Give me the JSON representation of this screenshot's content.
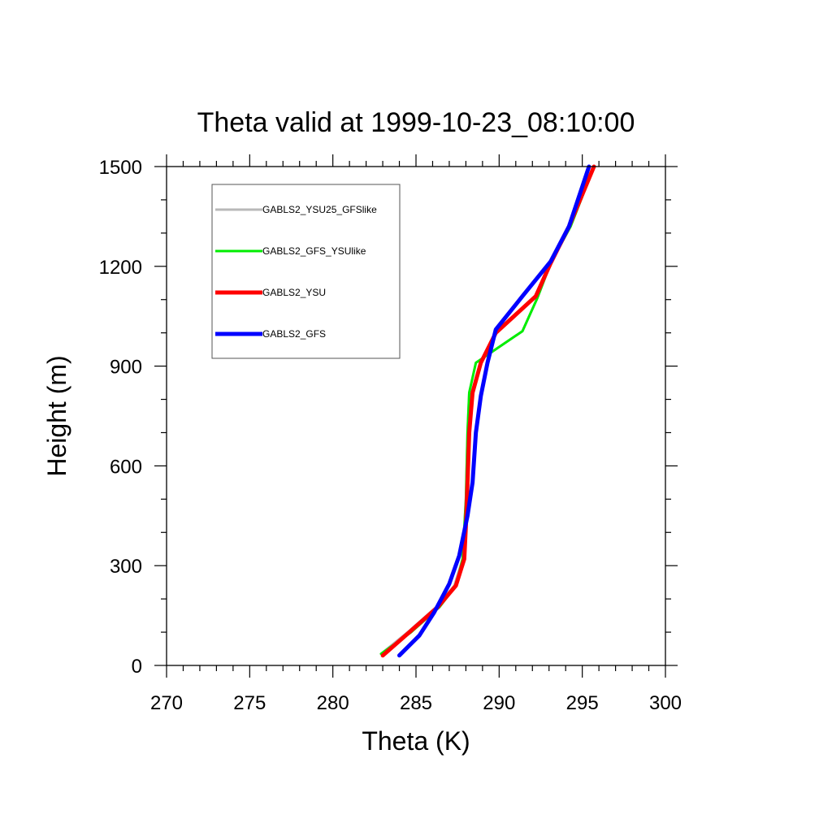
{
  "chart_data": {
    "type": "line",
    "title": "Theta valid at 1999-10-23_08:10:00",
    "xlabel": "Theta (K)",
    "ylabel": "Height (m)",
    "xlim": [
      270,
      300
    ],
    "ylim": [
      0,
      1500
    ],
    "xticks": [
      "270",
      "275",
      "280",
      "285",
      "290",
      "295",
      "300"
    ],
    "yticks": [
      "0",
      "300",
      "600",
      "900",
      "1200",
      "1500"
    ],
    "grid": false,
    "legend_position": "top-left",
    "series": [
      {
        "name": "GABLS2_YSU25_GFSlike",
        "color": "#b8b8b8",
        "width": 3,
        "points": [
          [
            282.9,
            35
          ],
          [
            284.5,
            100
          ],
          [
            286.2,
            175
          ],
          [
            287.3,
            240
          ],
          [
            287.8,
            320
          ],
          [
            288.0,
            500
          ],
          [
            288.1,
            700
          ],
          [
            288.2,
            820
          ],
          [
            288.6,
            910
          ],
          [
            291.4,
            1005
          ],
          [
            292.3,
            1105
          ],
          [
            293.1,
            1210
          ],
          [
            294.3,
            1320
          ],
          [
            295.7,
            1500
          ]
        ]
      },
      {
        "name": "GABLS2_GFS_YSUlike",
        "color": "#00ee00",
        "width": 3,
        "points": [
          [
            282.9,
            35
          ],
          [
            284.7,
            100
          ],
          [
            286.4,
            175
          ],
          [
            287.4,
            240
          ],
          [
            287.8,
            320
          ],
          [
            288.0,
            500
          ],
          [
            288.1,
            700
          ],
          [
            288.2,
            820
          ],
          [
            288.6,
            910
          ],
          [
            291.4,
            1005
          ],
          [
            292.3,
            1105
          ],
          [
            293.1,
            1210
          ],
          [
            294.3,
            1320
          ],
          [
            295.7,
            1500
          ]
        ]
      },
      {
        "name": "GABLS2_YSU",
        "color": "#ff0000",
        "width": 5,
        "points": [
          [
            283.0,
            30
          ],
          [
            284.6,
            100
          ],
          [
            286.3,
            175
          ],
          [
            287.4,
            240
          ],
          [
            287.9,
            320
          ],
          [
            288.0,
            420
          ],
          [
            288.1,
            550
          ],
          [
            288.2,
            700
          ],
          [
            288.4,
            820
          ],
          [
            288.9,
            910
          ],
          [
            289.8,
            1000
          ],
          [
            292.2,
            1110
          ],
          [
            293.1,
            1210
          ],
          [
            294.2,
            1320
          ],
          [
            295.7,
            1500
          ]
        ]
      },
      {
        "name": "GABLS2_GFS",
        "color": "#0000ff",
        "width": 5,
        "points": [
          [
            284.0,
            30
          ],
          [
            285.2,
            90
          ],
          [
            286.1,
            160
          ],
          [
            287.0,
            245
          ],
          [
            287.6,
            330
          ],
          [
            288.1,
            450
          ],
          [
            288.4,
            550
          ],
          [
            288.6,
            700
          ],
          [
            288.9,
            810
          ],
          [
            289.3,
            910
          ],
          [
            289.8,
            1010
          ],
          [
            291.4,
            1110
          ],
          [
            293.1,
            1215
          ],
          [
            294.2,
            1320
          ],
          [
            295.4,
            1500
          ]
        ]
      }
    ]
  }
}
